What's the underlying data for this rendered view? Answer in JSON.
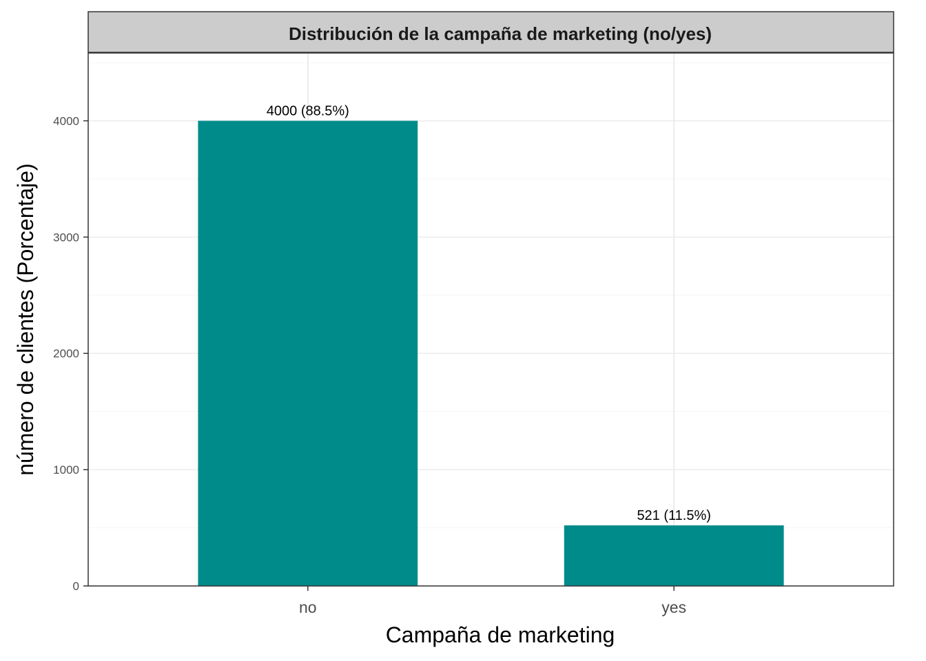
{
  "chart_data": {
    "type": "bar",
    "title": "Distribución de la campaña de marketing (no/yes)",
    "xlabel": "Campaña de marketing",
    "ylabel": "número de clientes (Porcentaje)",
    "categories": [
      "no",
      "yes"
    ],
    "values": [
      4000,
      521
    ],
    "data_labels": [
      "4000 (88.5%)",
      "521 (11.5%)"
    ],
    "yticks": [
      0,
      1000,
      2000,
      3000,
      4000
    ],
    "ylim": [
      0,
      4583
    ],
    "grid": true,
    "legend": "none",
    "colors": {
      "bar": "#008B8B",
      "strip_bg": "#CCCCCC",
      "panel_border": "#333333",
      "grid_major": "#EBEBEB",
      "grid_minor": "#F5F5F5"
    }
  }
}
